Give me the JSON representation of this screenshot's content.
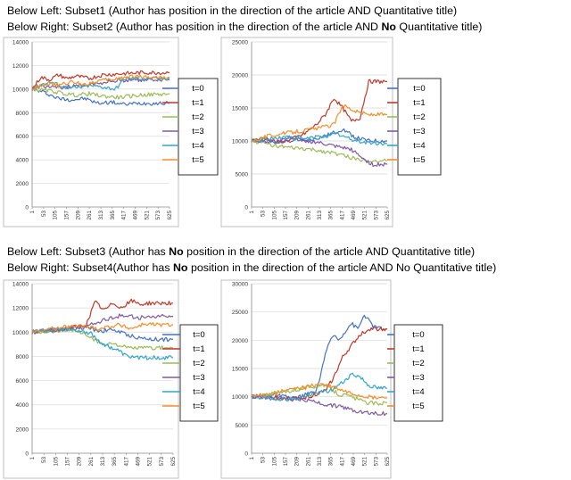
{
  "headings": [
    {
      "pre": "Below Left: Subset1 (Author has position in the direction of the article  AND  Quantitative title)",
      "bold": "",
      "post": ""
    },
    {
      "pre": "Below Right: Subset2 (Author has position in the direction of the article  AND  ",
      "bold": "No",
      "post": " Quantitative title)"
    },
    {
      "pre": "Below Left: Subset3 (Author has ",
      "bold": "No",
      "post": " position in the direction of the article AND  Quantitative title)"
    },
    {
      "pre": "Below Right: Subset4(Author has ",
      "bold": "No",
      "post": " position in the direction of the article AND  No Quantitative title)"
    }
  ],
  "colors": {
    "t=0": "#4472c4",
    "t=1": "#c0392b",
    "t=2": "#9bbb59",
    "t=3": "#7f5aa2",
    "t=4": "#31a6c9",
    "t=5": "#f28e2b"
  },
  "chart_data": [
    {
      "type": "line",
      "panel": "Subset1",
      "x_tick_labels": [
        "1",
        "53",
        "105",
        "157",
        "209",
        "261",
        "313",
        "365",
        "417",
        "469",
        "521",
        "573",
        "625"
      ],
      "y_ticks": [
        0,
        2000,
        4000,
        6000,
        8000,
        10000,
        12000,
        14000
      ],
      "ylim": [
        0,
        14000
      ],
      "xlim": [
        1,
        625
      ],
      "legend": [
        "t=0",
        "t=1",
        "t=2",
        "t=3",
        "t=4",
        "t=5"
      ],
      "series": [
        {
          "name": "t=0",
          "x": [
            1,
            60,
            120,
            180,
            240,
            300,
            360,
            420,
            480,
            625
          ],
          "y": [
            10000,
            9700,
            9200,
            9100,
            9200,
            8800,
            8900,
            8700,
            8800,
            8800
          ]
        },
        {
          "name": "t=1",
          "x": [
            1,
            40,
            80,
            120,
            160,
            200,
            260,
            320,
            400,
            500,
            625
          ],
          "y": [
            10000,
            11000,
            10800,
            11200,
            10900,
            11100,
            10900,
            11200,
            11300,
            11400,
            11400
          ]
        },
        {
          "name": "t=2",
          "x": [
            1,
            50,
            100,
            150,
            200,
            260,
            320,
            400,
            500,
            625
          ],
          "y": [
            10000,
            9900,
            9800,
            9600,
            9500,
            9600,
            9400,
            9300,
            9500,
            9600
          ]
        },
        {
          "name": "t=3",
          "x": [
            1,
            50,
            100,
            160,
            220,
            300,
            380,
            460,
            540,
            625
          ],
          "y": [
            10000,
            10300,
            10100,
            10200,
            10300,
            10500,
            10700,
            10800,
            10800,
            10800
          ]
        },
        {
          "name": "t=4",
          "x": [
            1,
            40,
            90,
            140,
            200,
            260,
            320,
            380,
            420,
            500,
            625
          ],
          "y": [
            10000,
            10400,
            10600,
            10200,
            10100,
            10300,
            10200,
            10000,
            10900,
            10900,
            10900
          ]
        },
        {
          "name": "t=5",
          "x": [
            1,
            60,
            120,
            180,
            240,
            300,
            360,
            420,
            480,
            540,
            625
          ],
          "y": [
            10000,
            10500,
            10300,
            10600,
            10400,
            10700,
            10800,
            11000,
            11100,
            11000,
            11000
          ]
        }
      ]
    },
    {
      "type": "line",
      "panel": "Subset2",
      "x_tick_labels": [
        "1",
        "53",
        "105",
        "157",
        "209",
        "261",
        "313",
        "365",
        "417",
        "469",
        "521",
        "573",
        "625"
      ],
      "y_ticks": [
        0,
        5000,
        10000,
        15000,
        20000,
        25000
      ],
      "ylim": [
        0,
        25000
      ],
      "xlim": [
        1,
        625
      ],
      "legend": [
        "t=0",
        "t=1",
        "t=2",
        "t=3",
        "t=4",
        "t=5"
      ],
      "series": [
        {
          "name": "t=0",
          "x": [
            1,
            60,
            120,
            180,
            240,
            300,
            360,
            420,
            480,
            540,
            625
          ],
          "y": [
            10000,
            10200,
            9800,
            10600,
            9900,
            10400,
            11000,
            11800,
            10500,
            10000,
            10000
          ]
        },
        {
          "name": "t=1",
          "x": [
            1,
            60,
            120,
            180,
            240,
            300,
            340,
            380,
            420,
            460,
            500,
            540,
            580,
            625
          ],
          "y": [
            10000,
            10500,
            9800,
            10200,
            11000,
            12500,
            14000,
            16500,
            15000,
            13000,
            13500,
            19000,
            19000,
            19000
          ]
        },
        {
          "name": "t=2",
          "x": [
            1,
            80,
            160,
            240,
            320,
            400,
            480,
            560,
            625
          ],
          "y": [
            10000,
            9500,
            9000,
            8800,
            8500,
            8000,
            7300,
            7000,
            7000
          ]
        },
        {
          "name": "t=3",
          "x": [
            1,
            60,
            140,
            220,
            300,
            380,
            460,
            520,
            560,
            625
          ],
          "y": [
            10000,
            10000,
            9900,
            10200,
            9800,
            9200,
            8700,
            7200,
            6400,
            6500
          ]
        },
        {
          "name": "t=4",
          "x": [
            1,
            80,
            160,
            240,
            320,
            400,
            460,
            520,
            580,
            625
          ],
          "y": [
            10000,
            10300,
            10600,
            10300,
            10700,
            11000,
            10200,
            9800,
            9600,
            9600
          ]
        },
        {
          "name": "t=5",
          "x": [
            1,
            80,
            160,
            240,
            320,
            380,
            420,
            480,
            540,
            625
          ],
          "y": [
            10000,
            10800,
            11200,
            11600,
            12000,
            12500,
            15500,
            14500,
            14000,
            14000
          ]
        }
      ]
    },
    {
      "type": "line",
      "panel": "Subset3",
      "x_tick_labels": [
        "1",
        "53",
        "105",
        "157",
        "209",
        "261",
        "313",
        "365",
        "417",
        "469",
        "521",
        "573",
        "625"
      ],
      "y_ticks": [
        0,
        2000,
        4000,
        6000,
        8000,
        10000,
        12000,
        14000
      ],
      "ylim": [
        0,
        14000
      ],
      "xlim": [
        1,
        625
      ],
      "legend": [
        "t=0",
        "t=1",
        "t=2",
        "t=3",
        "t=4",
        "t=5"
      ],
      "series": [
        {
          "name": "t=0",
          "x": [
            1,
            80,
            160,
            240,
            300,
            360,
            420,
            480,
            560,
            625
          ],
          "y": [
            10000,
            10300,
            10200,
            10400,
            10100,
            10200,
            9800,
            9500,
            9400,
            9400
          ]
        },
        {
          "name": "t=1",
          "x": [
            1,
            120,
            240,
            280,
            320,
            360,
            400,
            440,
            480,
            520,
            560,
            625
          ],
          "y": [
            10000,
            10200,
            10600,
            12500,
            11800,
            12400,
            12000,
            12600,
            12300,
            12400,
            12400,
            12400
          ]
        },
        {
          "name": "t=2",
          "x": [
            1,
            100,
            180,
            240,
            280,
            320,
            360,
            420,
            480,
            540,
            625
          ],
          "y": [
            10000,
            10100,
            10200,
            9800,
            9300,
            9000,
            9100,
            8700,
            8700,
            8700,
            8700
          ]
        },
        {
          "name": "t=3",
          "x": [
            1,
            120,
            240,
            320,
            400,
            480,
            560,
            625
          ],
          "y": [
            10000,
            10200,
            10500,
            11000,
            11400,
            11200,
            11300,
            11300
          ]
        },
        {
          "name": "t=4",
          "x": [
            1,
            120,
            200,
            260,
            300,
            340,
            380,
            420,
            480,
            540,
            625
          ],
          "y": [
            10000,
            10300,
            10200,
            9900,
            9200,
            8800,
            8500,
            8000,
            7900,
            7900,
            7900
          ]
        },
        {
          "name": "t=5",
          "x": [
            1,
            120,
            220,
            300,
            380,
            440,
            500,
            560,
            625
          ],
          "y": [
            10000,
            10400,
            10500,
            10300,
            10600,
            10300,
            10700,
            10600,
            10600
          ]
        }
      ]
    },
    {
      "type": "line",
      "panel": "Subset4",
      "x_tick_labels": [
        "1",
        "53",
        "105",
        "157",
        "209",
        "261",
        "313",
        "365",
        "417",
        "469",
        "521",
        "573",
        "625"
      ],
      "y_ticks": [
        0,
        5000,
        10000,
        15000,
        20000,
        25000,
        30000
      ],
      "ylim": [
        0,
        30000
      ],
      "xlim": [
        1,
        625
      ],
      "legend": [
        "t=0",
        "t=1",
        "t=2",
        "t=3",
        "t=4",
        "t=5"
      ],
      "series": [
        {
          "name": "t=0",
          "x": [
            1,
            100,
            200,
            260,
            300,
            340,
            360,
            380,
            400,
            430,
            460,
            490,
            520,
            560,
            600,
            625
          ],
          "y": [
            10000,
            10300,
            9700,
            10500,
            11000,
            17500,
            19500,
            21000,
            20000,
            21500,
            23000,
            22000,
            24500,
            22500,
            22000,
            22000
          ]
        },
        {
          "name": "t=1",
          "x": [
            1,
            100,
            200,
            260,
            300,
            340,
            380,
            420,
            460,
            500,
            540,
            580,
            625
          ],
          "y": [
            10000,
            9900,
            9500,
            10000,
            10500,
            11000,
            13500,
            17000,
            19000,
            21000,
            22000,
            22000,
            22000
          ]
        },
        {
          "name": "t=2",
          "x": [
            1,
            100,
            200,
            280,
            340,
            400,
            460,
            520,
            580,
            625
          ],
          "y": [
            10000,
            10500,
            11200,
            11800,
            12000,
            10500,
            10000,
            9000,
            8800,
            9000
          ]
        },
        {
          "name": "t=3",
          "x": [
            1,
            100,
            200,
            280,
            360,
            420,
            480,
            540,
            600,
            625
          ],
          "y": [
            10000,
            9800,
            9700,
            9200,
            8500,
            8200,
            7500,
            7200,
            7000,
            7000
          ]
        },
        {
          "name": "t=4",
          "x": [
            1,
            100,
            200,
            280,
            360,
            420,
            460,
            500,
            540,
            580,
            625
          ],
          "y": [
            10000,
            9700,
            9500,
            10500,
            11000,
            12500,
            14000,
            13500,
            12000,
            11500,
            11500
          ]
        },
        {
          "name": "t=5",
          "x": [
            1,
            100,
            200,
            260,
            320,
            380,
            440,
            500,
            560,
            625
          ],
          "y": [
            10000,
            10600,
            11400,
            11800,
            12200,
            11600,
            10800,
            10200,
            9800,
            9800
          ]
        }
      ]
    }
  ]
}
